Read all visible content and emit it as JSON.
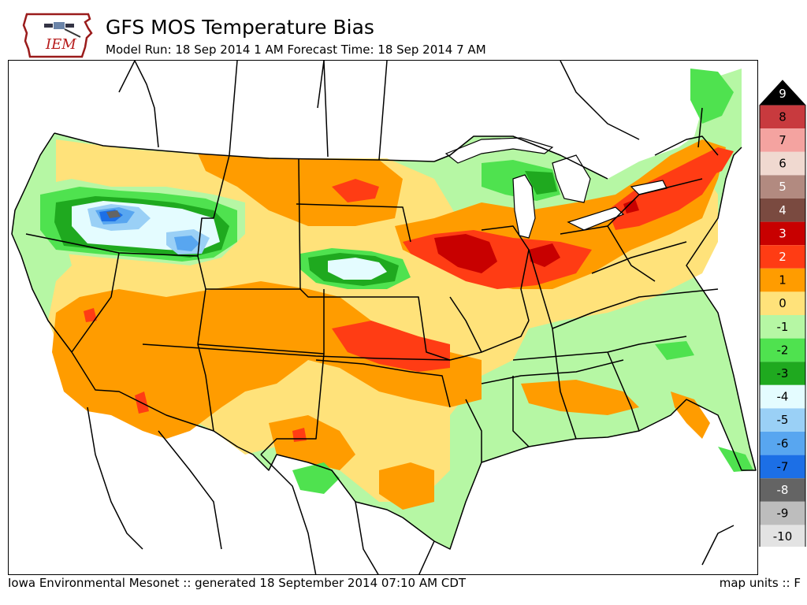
{
  "header": {
    "title": "GFS MOS Temperature Bias",
    "subtitle": "Model Run: 18 Sep 2014 1 AM Forecast Time: 18 Sep 2014 7 AM",
    "logo_text": "IEM"
  },
  "footer": {
    "credit": "Iowa Environmental Mesonet :: generated 18 September 2014 07:10 AM CDT",
    "units": "map units :: F"
  },
  "legend": {
    "levels": [
      {
        "label": "9",
        "color": "#000000"
      },
      {
        "label": "8",
        "color": "#c83a3e"
      },
      {
        "label": "7",
        "color": "#f4a3a0"
      },
      {
        "label": "6",
        "color": "#f0d9d0"
      },
      {
        "label": "5",
        "color": "#b28a80"
      },
      {
        "label": "4",
        "color": "#7a4a40"
      },
      {
        "label": "3",
        "color": "#c80000"
      },
      {
        "label": "2",
        "color": "#ff3c14"
      },
      {
        "label": "1",
        "color": "#ff9c00"
      },
      {
        "label": "0",
        "color": "#ffe27a"
      },
      {
        "label": "-1",
        "color": "#b6f7a4"
      },
      {
        "label": "-2",
        "color": "#4fe24f"
      },
      {
        "label": "-3",
        "color": "#1fa91f"
      },
      {
        "label": "-4",
        "color": "#e4fcff"
      },
      {
        "label": "-5",
        "color": "#9ad0f6"
      },
      {
        "label": "-6",
        "color": "#58a6f0"
      },
      {
        "label": "-7",
        "color": "#1c6fe6"
      },
      {
        "label": "-8",
        "color": "#646464"
      },
      {
        "label": "-9",
        "color": "#bdbdbd"
      },
      {
        "label": "-10",
        "color": "#e3e3e3"
      }
    ]
  }
}
